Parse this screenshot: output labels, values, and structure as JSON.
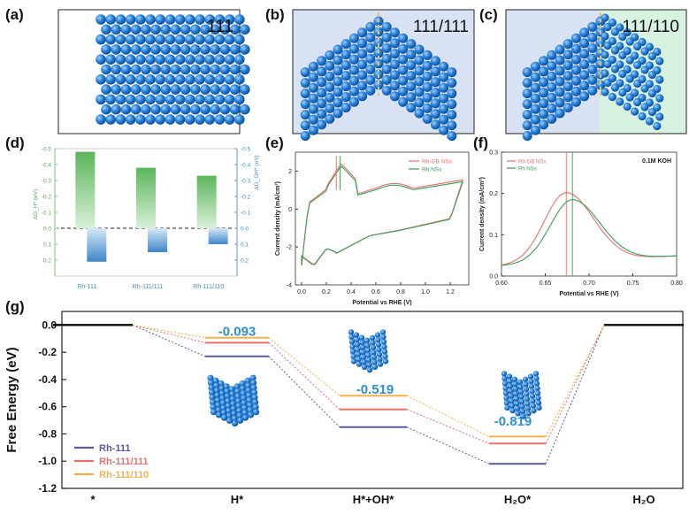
{
  "panels": {
    "a": {
      "letter": "(a)",
      "label": "111"
    },
    "b": {
      "letter": "(b)",
      "label": "111/111"
    },
    "c": {
      "letter": "(c)",
      "label": "111/110"
    }
  },
  "chart_data": [
    {
      "id": "d",
      "letter": "(d)",
      "type": "bar",
      "categories": [
        "Rh-111",
        "Rh-111/111",
        "Rh-111/110"
      ],
      "series": [
        {
          "name": "ΔG_H* (eV)",
          "values": [
            -0.48,
            -0.38,
            -0.33
          ],
          "color": "#7cc47c"
        },
        {
          "name": "ΔG_OH* (eV)",
          "values": [
            0.21,
            0.15,
            0.1
          ],
          "color": "#5b9bd5"
        }
      ],
      "left_ylabel": "ΔG_H* (eV)",
      "right_ylabel": "ΔG_OH* (eV)",
      "ylim": [
        -0.5,
        0.3
      ],
      "left_ticks": [
        "-0.5",
        "-0.4",
        "-0.3",
        "-0.2",
        "-0.1",
        "0.0",
        "0.1",
        "0.2"
      ],
      "right_ticks": [
        "-0.5",
        "-0.4",
        "-0.3",
        "-0.2",
        "-0.1",
        "0.0",
        "0.1",
        "0.2"
      ]
    },
    {
      "id": "e",
      "letter": "(e)",
      "type": "line",
      "xlabel": "Potential vs RHE (V)",
      "ylabel": "Current density (mA/cm²)",
      "xlim": [
        -0.05,
        1.35
      ],
      "ylim": [
        -4,
        3
      ],
      "xticks": [
        "0.0",
        "0.2",
        "0.4",
        "0.6",
        "0.8",
        "1.0",
        "1.2"
      ],
      "yticks": [
        "-4",
        "-2",
        "0",
        "2"
      ],
      "legend": [
        "Rh-GB NSs",
        "Rh NSs"
      ],
      "colors": [
        "#e8716d",
        "#3c9a5a"
      ],
      "markers": [
        0.28,
        0.31
      ]
    },
    {
      "id": "f",
      "letter": "(f)",
      "type": "line",
      "xlabel": "Potential vs RHE (V)",
      "ylabel": "Current density (mA/cm²)",
      "annotation": "0.1M KOH",
      "xlim": [
        0.6,
        0.8
      ],
      "ylim": [
        0.0,
        0.3
      ],
      "xticks": [
        "0.60",
        "0.65",
        "0.70",
        "0.75",
        "0.80"
      ],
      "yticks": [
        "0.0",
        "0.1",
        "0.2",
        "0.3"
      ],
      "legend": [
        "Rh-GB NSs",
        "Rh NSs"
      ],
      "colors": [
        "#e8716d",
        "#3c9a5a"
      ],
      "peaks": [
        {
          "x": 0.674,
          "y": 0.222
        },
        {
          "x": 0.681,
          "y": 0.205
        }
      ]
    },
    {
      "id": "g",
      "letter": "(g)",
      "type": "line",
      "ylabel": "Free Energy (eV)",
      "ylim": [
        -1.2,
        0.1
      ],
      "yticks": [
        "0.0",
        "-0.2",
        "-0.4",
        "-0.6",
        "-0.8",
        "-1.0",
        "-1.2"
      ],
      "categories": [
        "*",
        "H*",
        "H*+OH*",
        "H₂O*",
        "H₂O"
      ],
      "series": [
        {
          "name": "Rh-111",
          "color": "#5a5a9e",
          "values": [
            0.0,
            -0.23,
            -0.75,
            -1.02,
            0.0
          ]
        },
        {
          "name": "Rh-111/111",
          "color": "#e8716d",
          "values": [
            0.0,
            -0.13,
            -0.62,
            -0.87,
            0.0
          ]
        },
        {
          "name": "Rh-111/110",
          "color": "#f5b14e",
          "values": [
            0.0,
            -0.093,
            -0.519,
            -0.819,
            0.0
          ]
        }
      ],
      "annotations": [
        "-0.093",
        "-0.519",
        "-0.819"
      ]
    }
  ]
}
